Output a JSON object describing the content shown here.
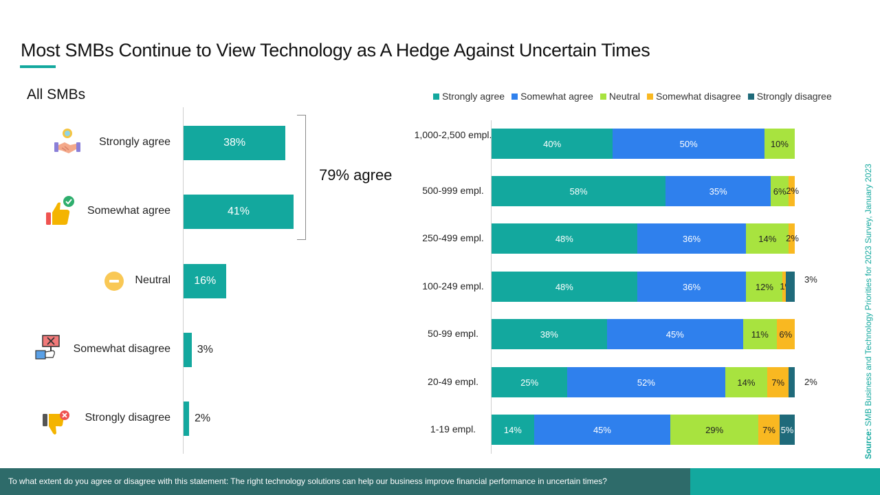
{
  "title": "Most SMBs Continue to View Technology as A Hedge Against Uncertain Times",
  "subtitle": "All SMBs",
  "agree_note": "79% agree",
  "source_label": "Source:",
  "source_text": " SMB Business and Technology Priorities for 2023 Survey, January 2023",
  "footer_question": "To what extent do you agree or disagree with this statement: The right technology solutions can help our business improve financial performance in uncertain times?",
  "colors": {
    "strongly_agree": "#13a89e",
    "somewhat_agree": "#2f80ed",
    "neutral": "#a8e33f",
    "somewhat_disagree": "#f9b821",
    "strongly_disagree": "#1f6a7a",
    "brand_teal": "#13a89e",
    "footer_dark": "#2e6b6a"
  },
  "chart_data": [
    {
      "type": "bar",
      "orientation": "horizontal",
      "title": "All SMBs",
      "categories": [
        "Strongly agree",
        "Somewhat agree",
        "Neutral",
        "Somewhat disagree",
        "Strongly disagree"
      ],
      "values": [
        38,
        41,
        16,
        3,
        2
      ],
      "labels": [
        "38%",
        "41%",
        "16%",
        "3%",
        "2%"
      ],
      "icons": [
        "handshake-icon",
        "thumbs-up-check-icon",
        "minus-circle-icon",
        "disagree-sign-icon",
        "thumbs-down-x-icon"
      ],
      "grid": false
    },
    {
      "type": "bar",
      "stacked": true,
      "orientation": "horizontal",
      "legend_position": "top",
      "categories": [
        "1,000-2,500 empl.",
        "500-999 empl.",
        "250-499 empl.",
        "100-249 empl.",
        "50-99 empl.",
        "20-49 empl.",
        "1-19 empl."
      ],
      "series": [
        {
          "name": "Strongly agree",
          "color_key": "strongly_agree",
          "values": [
            40,
            58,
            48,
            48,
            38,
            25,
            14
          ]
        },
        {
          "name": "Somewhat agree",
          "color_key": "somewhat_agree",
          "values": [
            50,
            35,
            36,
            36,
            45,
            52,
            45
          ]
        },
        {
          "name": "Neutral",
          "color_key": "neutral",
          "values": [
            10,
            6,
            14,
            12,
            11,
            14,
            29
          ]
        },
        {
          "name": "Somewhat disagree",
          "color_key": "somewhat_disagree",
          "values": [
            0,
            2,
            2,
            1,
            6,
            7,
            7
          ]
        },
        {
          "name": "Strongly disagree",
          "color_key": "strongly_disagree",
          "values": [
            0,
            0,
            0,
            3,
            0,
            2,
            5
          ]
        }
      ],
      "value_labels": [
        [
          "40%",
          "50%",
          "10%",
          "",
          ""
        ],
        [
          "58%",
          "35%",
          "6%",
          "2%",
          ""
        ],
        [
          "48%",
          "36%",
          "14%",
          "2%",
          ""
        ],
        [
          "48%",
          "36%",
          "12%",
          "1%",
          "3%"
        ],
        [
          "38%",
          "45%",
          "11%",
          "6%",
          ""
        ],
        [
          "25%",
          "52%",
          "14%",
          "7%",
          "2%"
        ],
        [
          "14%",
          "45%",
          "29%",
          "7%",
          "5%"
        ]
      ],
      "grid": false
    }
  ]
}
